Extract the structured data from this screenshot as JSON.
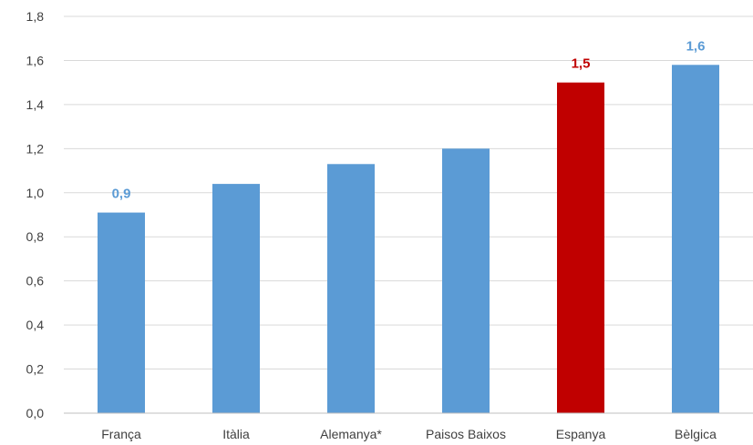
{
  "chart_data": {
    "type": "bar",
    "categories": [
      "França",
      "Itàlia",
      "Alemanya*",
      "Paisos Baixos",
      "Espanya",
      "Bèlgica"
    ],
    "values": [
      0.91,
      1.04,
      1.13,
      1.2,
      1.5,
      1.58
    ],
    "data_labels": [
      "0,9",
      "",
      "",
      "",
      "1,5",
      "1,6"
    ],
    "bar_colors": [
      "#5b9bd5",
      "#5b9bd5",
      "#5b9bd5",
      "#5b9bd5",
      "#c00000",
      "#5b9bd5"
    ],
    "label_colors": [
      "#5b9bd5",
      "#5b9bd5",
      "#5b9bd5",
      "#5b9bd5",
      "#c00000",
      "#5b9bd5"
    ],
    "ylim": [
      0,
      1.8
    ],
    "yticks": [
      0,
      0.2,
      0.4,
      0.6,
      0.8,
      1.0,
      1.2,
      1.4,
      1.6,
      1.8
    ],
    "ytick_labels": [
      "0,0",
      "0,2",
      "0,4",
      "0,6",
      "0,8",
      "1,0",
      "1,2",
      "1,4",
      "1,6",
      "1,8"
    ],
    "grid": true,
    "title": "",
    "xlabel": "",
    "ylabel": ""
  }
}
